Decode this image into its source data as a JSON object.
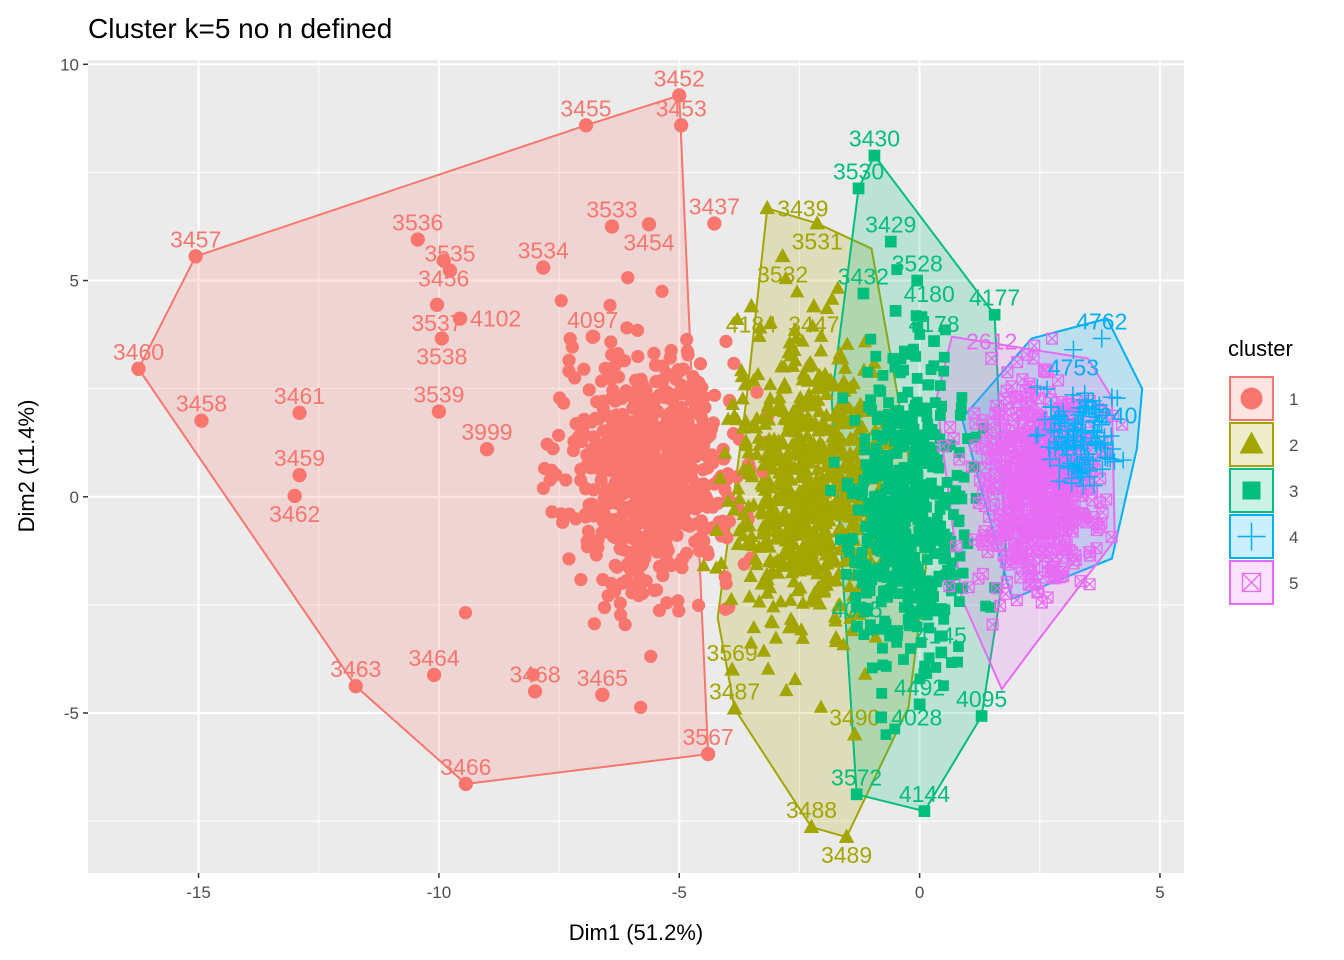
{
  "chart_data": {
    "type": "scatter",
    "title": "Cluster k=5 no n defined",
    "xlabel": "Dim1 (51.2%)",
    "ylabel": "Dim2 (11.4%)",
    "xlim": [
      -17.3,
      5.5
    ],
    "ylim": [
      -8.7,
      10.1
    ],
    "xticks": [
      -15,
      -10,
      -5,
      0,
      5
    ],
    "yticks": [
      -5,
      0,
      5,
      10
    ],
    "xtick_labels": [
      "-15",
      "-10",
      "-5",
      "0",
      "5"
    ],
    "ytick_labels": [
      "-5",
      "0",
      "5",
      "10"
    ],
    "grid": true,
    "legend": {
      "title": "cluster",
      "position": "right",
      "entries": [
        "1",
        "2",
        "3",
        "4",
        "5"
      ]
    },
    "colors": {
      "1": "#F8766D",
      "2": "#A3A500",
      "3": "#00BF7D",
      "4": "#00B0F6",
      "5": "#E76BF3"
    },
    "shapes": {
      "1": "circle",
      "2": "triangle",
      "3": "square",
      "4": "plus",
      "5": "square-cross"
    },
    "hulls": [
      {
        "cluster": "1",
        "points": [
          [
            -16.25,
            2.96
          ],
          [
            -15.06,
            5.56
          ],
          [
            -6.94,
            8.59
          ],
          [
            -5.0,
            9.28
          ],
          [
            -4.4,
            -5.95
          ],
          [
            -9.44,
            -6.64
          ],
          [
            -11.73,
            -4.38
          ]
        ]
      },
      {
        "cluster": "2",
        "points": [
          [
            -3.17,
            6.67
          ],
          [
            -2.13,
            6.32
          ],
          [
            -1.0,
            5.74
          ],
          [
            0.15,
            -1.45
          ],
          [
            -0.23,
            -4.86
          ],
          [
            -1.52,
            -7.87
          ],
          [
            -2.25,
            -7.64
          ],
          [
            -3.85,
            -4.9
          ],
          [
            -4.2,
            -2.8
          ],
          [
            -3.6,
            2.27
          ]
        ]
      },
      {
        "cluster": "3",
        "points": [
          [
            -0.94,
            7.89
          ],
          [
            1.56,
            4.21
          ],
          [
            1.8,
            -1.4
          ],
          [
            1.29,
            -5.07
          ],
          [
            0.1,
            -7.27
          ],
          [
            -1.31,
            -6.88
          ],
          [
            -1.83,
            2.27
          ],
          [
            -1.27,
            7.13
          ]
        ]
      },
      {
        "cluster": "4",
        "points": [
          [
            3.9,
            4.12
          ],
          [
            4.63,
            2.5
          ],
          [
            4.52,
            1.11
          ],
          [
            4.0,
            -1.43
          ],
          [
            1.92,
            -2.36
          ],
          [
            0.88,
            1.81
          ],
          [
            2.33,
            3.66
          ]
        ]
      },
      {
        "cluster": "5",
        "points": [
          [
            0.67,
            3.7
          ],
          [
            3.5,
            3.2
          ],
          [
            4.0,
            2.3
          ],
          [
            4.06,
            -1.0
          ],
          [
            2.33,
            -3.52
          ],
          [
            1.71,
            -4.45
          ],
          [
            0.88,
            -2.36
          ],
          [
            0.35,
            2.27
          ]
        ]
      }
    ],
    "labeled_points": [
      {
        "label": "3452",
        "cluster": "1",
        "x": -5.0,
        "y": 9.28
      },
      {
        "label": "3453",
        "cluster": "1",
        "x": -4.96,
        "y": 8.59
      },
      {
        "label": "3455",
        "cluster": "1",
        "x": -6.94,
        "y": 8.59
      },
      {
        "label": "3457",
        "cluster": "1",
        "x": -15.06,
        "y": 5.56
      },
      {
        "label": "3460",
        "cluster": "1",
        "x": -16.25,
        "y": 2.96
      },
      {
        "label": "3458",
        "cluster": "1",
        "x": -14.94,
        "y": 1.76
      },
      {
        "label": "3461",
        "cluster": "1",
        "x": -12.9,
        "y": 1.94
      },
      {
        "label": "3459",
        "cluster": "1",
        "x": -12.9,
        "y": 0.5
      },
      {
        "label": "3462",
        "cluster": "1",
        "x": -13.0,
        "y": 0.02
      },
      {
        "label": "3463",
        "cluster": "1",
        "x": -11.73,
        "y": -4.38
      },
      {
        "label": "3466",
        "cluster": "1",
        "x": -9.44,
        "y": -6.64
      },
      {
        "label": "3464",
        "cluster": "1",
        "x": -10.1,
        "y": -4.12
      },
      {
        "label": "3468",
        "cluster": "1",
        "x": -8.0,
        "y": -4.5
      },
      {
        "label": "3465",
        "cluster": "1",
        "x": -6.6,
        "y": -4.58
      },
      {
        "label": "3567",
        "cluster": "1",
        "x": -4.4,
        "y": -5.95
      },
      {
        "label": "3536",
        "cluster": "1",
        "x": -10.44,
        "y": 5.95
      },
      {
        "label": "3456",
        "cluster": "1",
        "x": -9.9,
        "y": 5.46
      },
      {
        "label": "3535",
        "cluster": "1",
        "x": -9.77,
        "y": 5.23
      },
      {
        "label": "3537",
        "cluster": "1",
        "x": -10.04,
        "y": 4.44
      },
      {
        "label": "4102",
        "cluster": "1",
        "x": -9.56,
        "y": 4.12
      },
      {
        "label": "3538",
        "cluster": "1",
        "x": -9.94,
        "y": 3.66
      },
      {
        "label": "3539",
        "cluster": "1",
        "x": -10.0,
        "y": 1.97
      },
      {
        "label": "3534",
        "cluster": "1",
        "x": -7.83,
        "y": 5.3
      },
      {
        "label": "3533",
        "cluster": "1",
        "x": -6.4,
        "y": 6.25
      },
      {
        "label": "3454",
        "cluster": "1",
        "x": -5.63,
        "y": 6.3
      },
      {
        "label": "3437",
        "cluster": "1",
        "x": -4.27,
        "y": 6.32
      },
      {
        "label": "3999",
        "cluster": "1",
        "x": -9.0,
        "y": 1.1
      },
      {
        "label": "4097",
        "cluster": "1",
        "x": -6.8,
        "y": 3.7
      },
      {
        "label": "3439",
        "cluster": "2",
        "x": -3.17,
        "y": 6.67
      },
      {
        "label": "3531",
        "cluster": "2",
        "x": -2.13,
        "y": 6.32
      },
      {
        "label": "3532",
        "cluster": "2",
        "x": -2.85,
        "y": 5.56
      },
      {
        "label": "3487",
        "cluster": "2",
        "x": -3.85,
        "y": -4.9
      },
      {
        "label": "3490",
        "cluster": "2",
        "x": -1.35,
        "y": -5.5
      },
      {
        "label": "3488",
        "cluster": "2",
        "x": -2.25,
        "y": -7.64
      },
      {
        "label": "3489",
        "cluster": "2",
        "x": -1.52,
        "y": -7.87
      },
      {
        "label": "3569",
        "cluster": "2",
        "x": -3.9,
        "y": -4.0
      },
      {
        "label": "4184",
        "cluster": "2",
        "x": -3.5,
        "y": 4.4
      },
      {
        "label": "3447",
        "cluster": "2",
        "x": -2.2,
        "y": 4.4
      },
      {
        "label": "3430",
        "cluster": "3",
        "x": -0.94,
        "y": 7.89
      },
      {
        "label": "3530",
        "cluster": "3",
        "x": -1.27,
        "y": 7.13
      },
      {
        "label": "3429",
        "cluster": "3",
        "x": -0.6,
        "y": 5.9
      },
      {
        "label": "3432",
        "cluster": "3",
        "x": -1.17,
        "y": 4.7
      },
      {
        "label": "3528",
        "cluster": "3",
        "x": -0.05,
        "y": 5.0
      },
      {
        "label": "4177",
        "cluster": "3",
        "x": 1.56,
        "y": 4.21
      },
      {
        "label": "4178",
        "cluster": "3",
        "x": 0.3,
        "y": 3.6
      },
      {
        "label": "4180",
        "cluster": "3",
        "x": -0.5,
        "y": 4.3
      },
      {
        "label": "3572",
        "cluster": "3",
        "x": -1.31,
        "y": -6.88
      },
      {
        "label": "4144",
        "cluster": "3",
        "x": 0.1,
        "y": -7.27
      },
      {
        "label": "4095",
        "cluster": "3",
        "x": 1.29,
        "y": -5.07
      },
      {
        "label": "4028",
        "cluster": "3",
        "x": -0.8,
        "y": -5.1
      },
      {
        "label": "4492",
        "cluster": "3",
        "x": 0.0,
        "y": -4.8
      },
      {
        "label": "4145",
        "cluster": "3",
        "x": 0.45,
        "y": -3.6
      },
      {
        "label": "4025",
        "cluster": "3",
        "x": -1.3,
        "y": -3.0
      },
      {
        "label": "4762",
        "cluster": "4",
        "x": 3.79,
        "y": 3.66
      },
      {
        "label": "4753",
        "cluster": "4",
        "x": 3.2,
        "y": 3.4
      },
      {
        "label": "5240",
        "cluster": "4",
        "x": 4.0,
        "y": 2.3
      },
      {
        "label": "2612",
        "cluster": "5",
        "x": 1.5,
        "y": 3.2
      }
    ]
  }
}
